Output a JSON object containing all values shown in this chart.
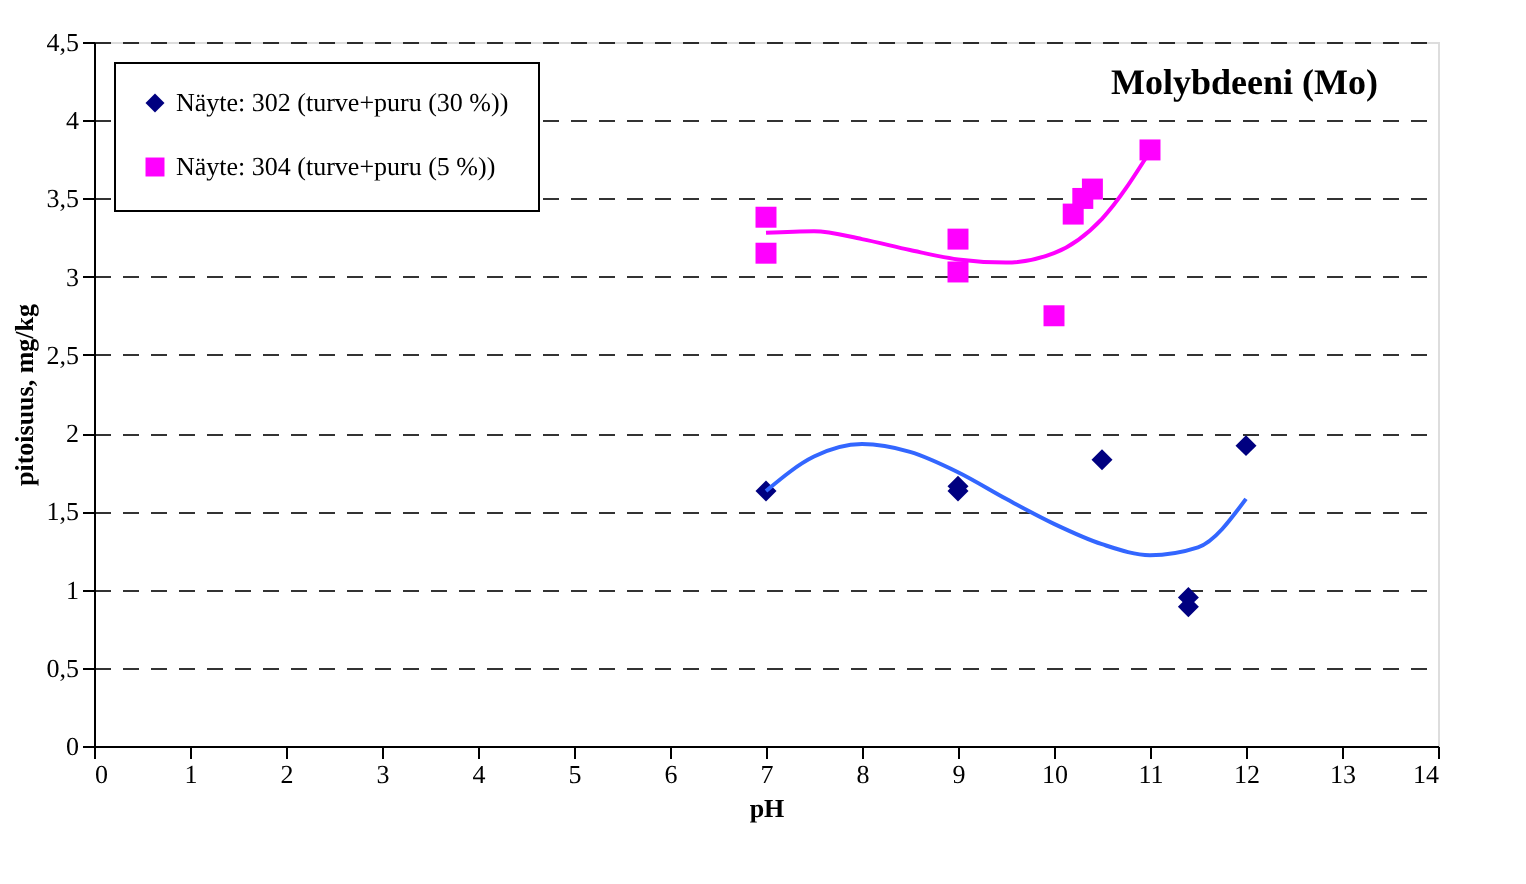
{
  "chart_data": {
    "type": "scatter",
    "title": "Molybdeeni (Mo)",
    "xlabel": "pH",
    "ylabel": "pitoisuus, mg/kg",
    "xlim": [
      0,
      14
    ],
    "xticks": [
      0,
      1,
      2,
      3,
      4,
      5,
      6,
      7,
      8,
      9,
      10,
      11,
      12,
      13,
      14
    ],
    "ylim": [
      0,
      4.5
    ],
    "yticks": [
      0,
      {
        "value": 0.5,
        "label": "0,5"
      },
      1,
      {
        "value": 1.5,
        "label": "1,5"
      },
      2,
      {
        "value": 2.5,
        "label": "2,5"
      },
      3,
      {
        "value": 3.5,
        "label": "3,5"
      },
      4,
      {
        "value": 4.5,
        "label": "4,5"
      }
    ],
    "grid": "y",
    "legend": "top left",
    "series": [
      {
        "name": "Näyte: 302 (turve+puru (30 %))",
        "type": "scatter",
        "marker": "diamond",
        "color": "#000080",
        "x": [
          7,
          9,
          9,
          10.5,
          11.4,
          11.4,
          12
        ],
        "values": [
          1.63,
          1.63,
          1.66,
          1.83,
          0.95,
          0.89,
          1.92
        ]
      },
      {
        "name": "Näyte: 304 (turve+puru (5 %))",
        "type": "scatter",
        "marker": "square",
        "color": "#ff00ff",
        "x": [
          7,
          7,
          9,
          9,
          10,
          10.2,
          10.3,
          10.4,
          11
        ],
        "values": [
          3.38,
          3.15,
          3.24,
          3.03,
          2.75,
          3.4,
          3.5,
          3.56,
          3.81
        ]
      },
      {
        "type": "line",
        "color": "#3366ff",
        "line_style": "solid",
        "x": [
          7,
          7.5,
          8,
          8.5,
          9,
          9.5,
          10,
          10.5,
          11,
          11.5,
          12
        ],
        "values": [
          1.63,
          1.85,
          1.93,
          1.88,
          1.75,
          1.58,
          1.42,
          1.29,
          1.22,
          1.27,
          1.58
        ]
      },
      {
        "type": "line",
        "color": "#ff00ff",
        "line_style": "solid",
        "x": [
          7,
          7.5,
          8,
          8.5,
          9,
          9.5,
          10,
          10.5,
          11
        ],
        "values": [
          3.28,
          3.29,
          3.24,
          3.17,
          3.11,
          3.09,
          3.15,
          3.37,
          3.8
        ]
      }
    ]
  }
}
